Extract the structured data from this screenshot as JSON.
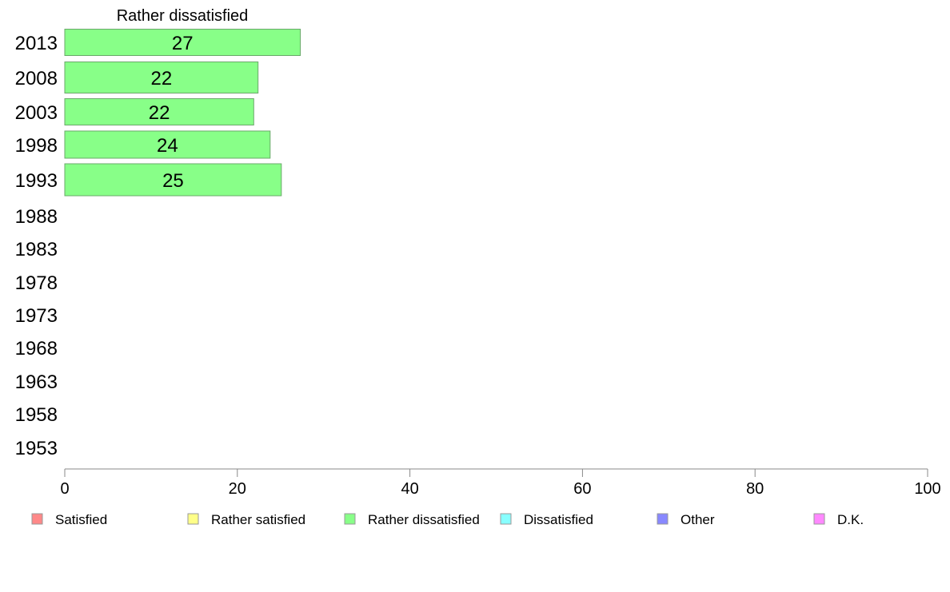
{
  "chart_data": {
    "type": "bar",
    "orientation": "horizontal",
    "title": "Rather dissatisfied",
    "categories": [
      "2013",
      "2008",
      "2003",
      "1998",
      "1993",
      "1988",
      "1983",
      "1978",
      "1973",
      "1968",
      "1963",
      "1958",
      "1953"
    ],
    "series": [
      {
        "name": "Rather dissatisfied",
        "values": [
          27.3,
          22.4,
          21.9,
          23.8,
          25.1,
          null,
          null,
          null,
          null,
          null,
          null,
          null,
          null
        ],
        "labels": [
          "27",
          "22",
          "22",
          "24",
          "25",
          "",
          "",
          "",
          "",
          "",
          "",
          "",
          ""
        ]
      }
    ],
    "xlim": [
      0,
      100
    ],
    "xticks": [
      "0",
      "20",
      "40",
      "60",
      "80",
      "100"
    ],
    "grid": false,
    "bar_color": "#88ff88",
    "legend": {
      "placement": "bottom",
      "items": [
        {
          "label": "Satisfied",
          "color": "#ff8888"
        },
        {
          "label": "Rather satisfied",
          "color": "#ffff88"
        },
        {
          "label": "Rather dissatisfied",
          "color": "#88ff88"
        },
        {
          "label": "Dissatisfied",
          "color": "#88ffff"
        },
        {
          "label": "Other",
          "color": "#8888ff"
        },
        {
          "label": "D.K.",
          "color": "#ff88ff"
        }
      ]
    }
  }
}
